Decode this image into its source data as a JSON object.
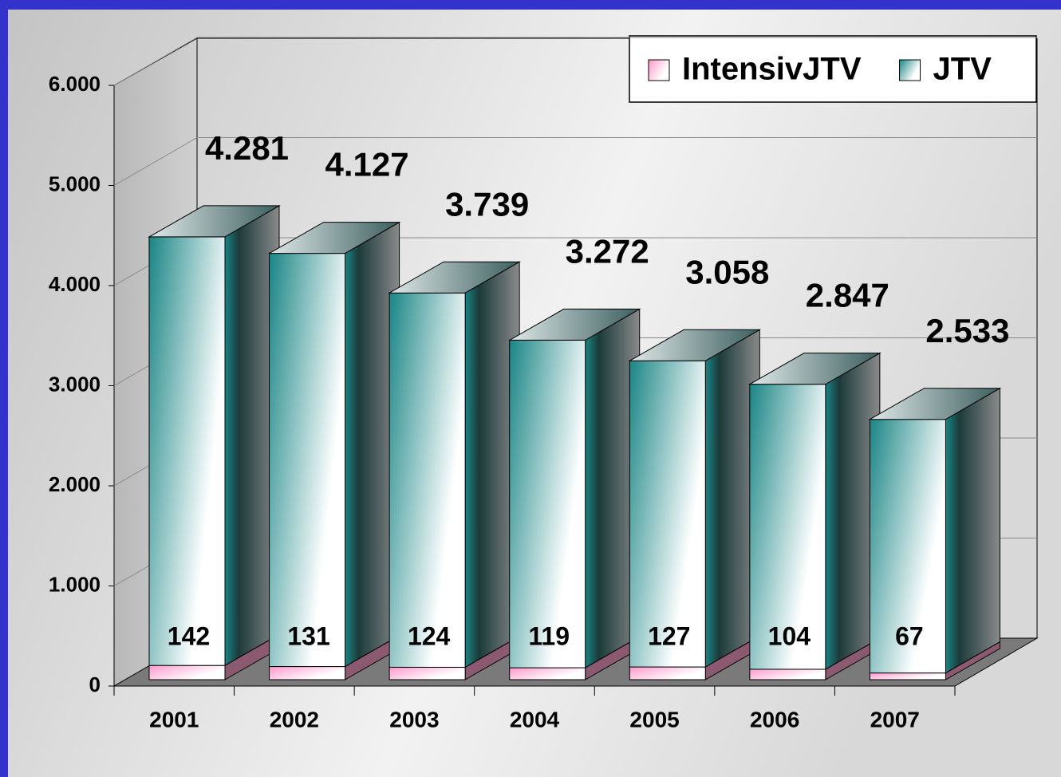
{
  "chart_data": {
    "type": "bar3d_stacked",
    "categories": [
      "2001",
      "2002",
      "2003",
      "2004",
      "2005",
      "2006",
      "2007"
    ],
    "series": [
      {
        "name": "IntensivJTV",
        "color": "#ff99cc",
        "values": [
          142,
          131,
          124,
          119,
          127,
          104,
          67
        ],
        "value_labels": [
          "142",
          "131",
          "124",
          "119",
          "127",
          "104",
          "67"
        ]
      },
      {
        "name": "JTV",
        "color": "#1a8585",
        "values": [
          4281,
          4127,
          3739,
          3272,
          3058,
          2847,
          2533
        ],
        "value_labels": [
          "4.281",
          "4.127",
          "3.739",
          "3.272",
          "3.058",
          "2.847",
          "2.533"
        ]
      }
    ],
    "ylim": [
      0,
      6000
    ],
    "yticks": [
      {
        "value": 0,
        "label": "0"
      },
      {
        "value": 1000,
        "label": "1.000"
      },
      {
        "value": 2000,
        "label": "2.000"
      },
      {
        "value": 3000,
        "label": "3.000"
      },
      {
        "value": 4000,
        "label": "4.000"
      },
      {
        "value": 5000,
        "label": "5.000"
      },
      {
        "value": 6000,
        "label": "6.000"
      }
    ],
    "grid": true,
    "legend": "top-right"
  }
}
